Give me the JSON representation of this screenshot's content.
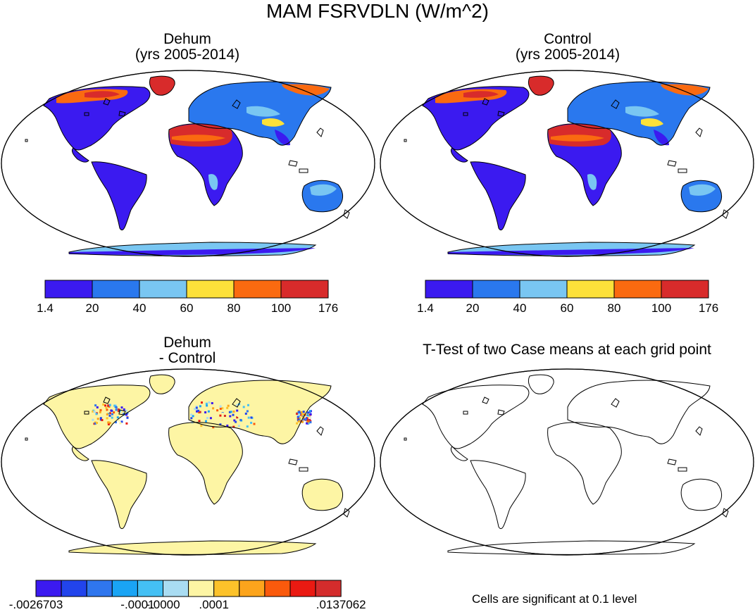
{
  "title": "MAM FSRVDLN (W/m^2)",
  "panels": {
    "dehum": {
      "title_line1": "Dehum",
      "title_line2": "(yrs 2005-2014)"
    },
    "control": {
      "title_line1": "Control",
      "title_line2": "(yrs 2005-2014)"
    },
    "diff": {
      "title_line1": "Dehum",
      "title_line2": "- Control"
    },
    "ttest": {
      "title": "T-Test of two Case means at each grid point",
      "note": "Cells are significant at 0.1 level"
    }
  },
  "colorbar_main": {
    "colors": [
      "#3b1af0",
      "#2a78ee",
      "#79c6f2",
      "#fde13a",
      "#fa6a10",
      "#d82b2b"
    ],
    "labels": [
      "1.4",
      "20",
      "40",
      "60",
      "80",
      "100",
      "176"
    ]
  },
  "colorbar_diff": {
    "colors": [
      "#3b1af0",
      "#2244ec",
      "#2f76ee",
      "#1aa4f4",
      "#44c0f4",
      "#a9dcf2",
      "#fdf5a4",
      "#fcc22a",
      "#fca41c",
      "#fa5a0c",
      "#ea1a12",
      "#d42c2c"
    ],
    "labels": [
      {
        "text": "-.0026703",
        "index": 0
      },
      {
        "text": "-.0001",
        "index": 4
      },
      {
        "text": "-.0000",
        "index": 5
      },
      {
        "text": ".0001",
        "index": 7
      },
      {
        "text": ".0137062",
        "index": 12
      }
    ]
  },
  "palette": {
    "ocean": "#ffffff",
    "diff_land": "#fdf5a4",
    "coast": "#000000"
  }
}
